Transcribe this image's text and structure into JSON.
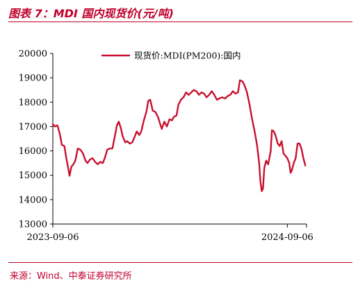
{
  "figure": {
    "title": "图表 7：MDI 国内现货价(元/吨)",
    "source": "来源：Wind、中泰证券研究所"
  },
  "colors": {
    "accent": "#c0002a",
    "series": "#c8102e",
    "axis": "#000000"
  },
  "chart_data": {
    "type": "line",
    "title": "",
    "xlabel": "",
    "ylabel": "",
    "ylim": [
      13000,
      20000
    ],
    "yticks": [
      "13000",
      "14000",
      "15000",
      "16000",
      "17000",
      "18000",
      "19000",
      "20000"
    ],
    "xlim": [
      "2023-09-06",
      "2024-10-06"
    ],
    "xticks": [
      "2023-09-06",
      "2024-09-06"
    ],
    "grid": false,
    "legend_position": "top-center",
    "series": [
      {
        "name": "现货价:MDI(PM200):国内",
        "points": [
          [
            "2023-09-06",
            17100
          ],
          [
            "2023-09-09",
            17000
          ],
          [
            "2023-09-13",
            17050
          ],
          [
            "2023-09-17",
            16700
          ],
          [
            "2023-09-20",
            16250
          ],
          [
            "2023-09-24",
            16200
          ],
          [
            "2023-09-27",
            15700
          ],
          [
            "2023-09-30",
            15300
          ],
          [
            "2023-10-02",
            14980
          ],
          [
            "2023-10-05",
            15350
          ],
          [
            "2023-10-08",
            15450
          ],
          [
            "2023-10-11",
            15600
          ],
          [
            "2023-10-15",
            16100
          ],
          [
            "2023-10-19",
            16050
          ],
          [
            "2023-10-23",
            15900
          ],
          [
            "2023-10-27",
            15600
          ],
          [
            "2023-10-30",
            15500
          ],
          [
            "2023-11-03",
            15650
          ],
          [
            "2023-11-07",
            15700
          ],
          [
            "2023-11-11",
            15550
          ],
          [
            "2023-11-15",
            15450
          ],
          [
            "2023-11-19",
            15550
          ],
          [
            "2023-11-23",
            15500
          ],
          [
            "2023-11-26",
            15700
          ],
          [
            "2023-11-30",
            16050
          ],
          [
            "2023-12-04",
            16100
          ],
          [
            "2023-12-08",
            16100
          ],
          [
            "2023-12-11",
            16500
          ],
          [
            "2023-12-15",
            17050
          ],
          [
            "2023-12-18",
            17200
          ],
          [
            "2023-12-21",
            16950
          ],
          [
            "2023-12-24",
            16600
          ],
          [
            "2023-12-28",
            16350
          ],
          [
            "2023-12-31",
            16400
          ],
          [
            "2024-01-04",
            16300
          ],
          [
            "2024-01-08",
            16350
          ],
          [
            "2024-01-12",
            16600
          ],
          [
            "2024-01-15",
            16800
          ],
          [
            "2024-01-19",
            16650
          ],
          [
            "2024-01-22",
            16800
          ],
          [
            "2024-01-26",
            17250
          ],
          [
            "2024-01-30",
            17600
          ],
          [
            "2024-02-02",
            18050
          ],
          [
            "2024-02-05",
            18100
          ],
          [
            "2024-02-09",
            17650
          ],
          [
            "2024-02-13",
            17600
          ],
          [
            "2024-02-17",
            17400
          ],
          [
            "2024-02-20",
            17150
          ],
          [
            "2024-02-23",
            16900
          ],
          [
            "2024-02-27",
            17200
          ],
          [
            "2024-03-02",
            17000
          ],
          [
            "2024-03-06",
            17300
          ],
          [
            "2024-03-10",
            17250
          ],
          [
            "2024-03-13",
            17400
          ],
          [
            "2024-03-17",
            17450
          ],
          [
            "2024-03-20",
            17900
          ],
          [
            "2024-03-24",
            18100
          ],
          [
            "2024-03-28",
            18200
          ],
          [
            "2024-04-01",
            18400
          ],
          [
            "2024-04-05",
            18300
          ],
          [
            "2024-04-09",
            18400
          ],
          [
            "2024-04-13",
            18500
          ],
          [
            "2024-04-17",
            18450
          ],
          [
            "2024-04-21",
            18300
          ],
          [
            "2024-04-25",
            18400
          ],
          [
            "2024-04-29",
            18350
          ],
          [
            "2024-05-03",
            18200
          ],
          [
            "2024-05-07",
            18300
          ],
          [
            "2024-05-11",
            18450
          ],
          [
            "2024-05-15",
            18300
          ],
          [
            "2024-05-19",
            18100
          ],
          [
            "2024-05-23",
            18150
          ],
          [
            "2024-05-27",
            18200
          ],
          [
            "2024-06-01",
            18150
          ],
          [
            "2024-06-05",
            18250
          ],
          [
            "2024-06-09",
            18300
          ],
          [
            "2024-06-13",
            18450
          ],
          [
            "2024-06-17",
            18350
          ],
          [
            "2024-06-21",
            18400
          ],
          [
            "2024-06-24",
            18900
          ],
          [
            "2024-06-28",
            18850
          ],
          [
            "2024-07-01",
            18700
          ],
          [
            "2024-07-05",
            18400
          ],
          [
            "2024-07-09",
            17900
          ],
          [
            "2024-07-13",
            17300
          ],
          [
            "2024-07-17",
            16800
          ],
          [
            "2024-07-21",
            16200
          ],
          [
            "2024-07-24",
            15500
          ],
          [
            "2024-07-26",
            14750
          ],
          [
            "2024-07-28",
            14350
          ],
          [
            "2024-07-30",
            14450
          ],
          [
            "2024-08-01",
            15300
          ],
          [
            "2024-08-04",
            15600
          ],
          [
            "2024-08-07",
            15450
          ],
          [
            "2024-08-09",
            15700
          ],
          [
            "2024-08-11",
            16000
          ],
          [
            "2024-08-13",
            16850
          ],
          [
            "2024-08-16",
            16800
          ],
          [
            "2024-08-19",
            16600
          ],
          [
            "2024-08-22",
            16300
          ],
          [
            "2024-08-25",
            16200
          ],
          [
            "2024-08-28",
            16400
          ],
          [
            "2024-08-31",
            15900
          ],
          [
            "2024-09-03",
            15800
          ],
          [
            "2024-09-06",
            15700
          ],
          [
            "2024-09-09",
            15500
          ],
          [
            "2024-09-11",
            15100
          ],
          [
            "2024-09-13",
            15200
          ],
          [
            "2024-09-16",
            15500
          ],
          [
            "2024-09-19",
            15700
          ],
          [
            "2024-09-22",
            16300
          ],
          [
            "2024-09-25",
            16300
          ],
          [
            "2024-09-28",
            16100
          ],
          [
            "2024-10-01",
            15700
          ],
          [
            "2024-10-04",
            15400
          ]
        ]
      }
    ]
  }
}
